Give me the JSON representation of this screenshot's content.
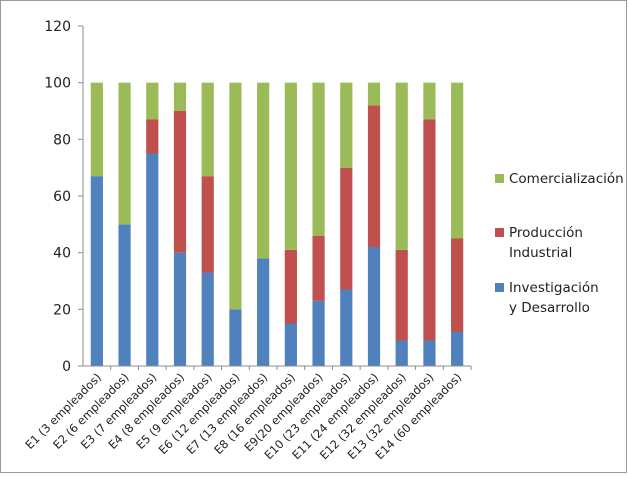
{
  "chart_data": {
    "type": "bar",
    "stacked": true,
    "categories": [
      "E1 (3 empleados)",
      "E2 (6 empleados)",
      "E3 (7 empleados)",
      "E4 (8 empleados)",
      "E5 (9 empleados)",
      "E6 (12 empleados)",
      "E7 (13 empleados)",
      "E8 (16 empleados)",
      "E9(20 empleados)",
      "E10 (23 empleados)",
      "E11 (24 empleados)",
      "E12 (32 empleados)",
      "E13 (32 empleados)",
      "E14 (60 empleados)"
    ],
    "series": [
      {
        "name": "Investigación\ny Desarrollo",
        "color": "#4f81bd",
        "values": [
          67,
          50,
          75,
          40,
          33,
          20,
          38,
          15,
          23,
          27,
          42,
          9,
          9,
          12
        ]
      },
      {
        "name": "Producción\nIndustrial",
        "color": "#c0504d",
        "values": [
          0,
          0,
          12,
          50,
          34,
          0,
          0,
          26,
          23,
          43,
          50,
          32,
          78,
          33
        ]
      },
      {
        "name": "Comercialización",
        "color": "#9bbb59",
        "values": [
          33,
          50,
          13,
          10,
          33,
          80,
          62,
          59,
          54,
          30,
          8,
          59,
          13,
          55
        ]
      }
    ],
    "ylim": [
      0,
      120
    ],
    "yticks": [
      0,
      20,
      40,
      60,
      80,
      100,
      120
    ],
    "grid": false,
    "legend_position": "right",
    "title": "",
    "xlabel": "",
    "ylabel": ""
  },
  "legend": {
    "items": [
      {
        "label": "Comercialización",
        "color": "#9bbb59"
      },
      {
        "label": "Producción\nIndustrial",
        "color": "#c0504d"
      },
      {
        "label": "Investigación\ny Desarrollo",
        "color": "#4f81bd"
      }
    ]
  }
}
